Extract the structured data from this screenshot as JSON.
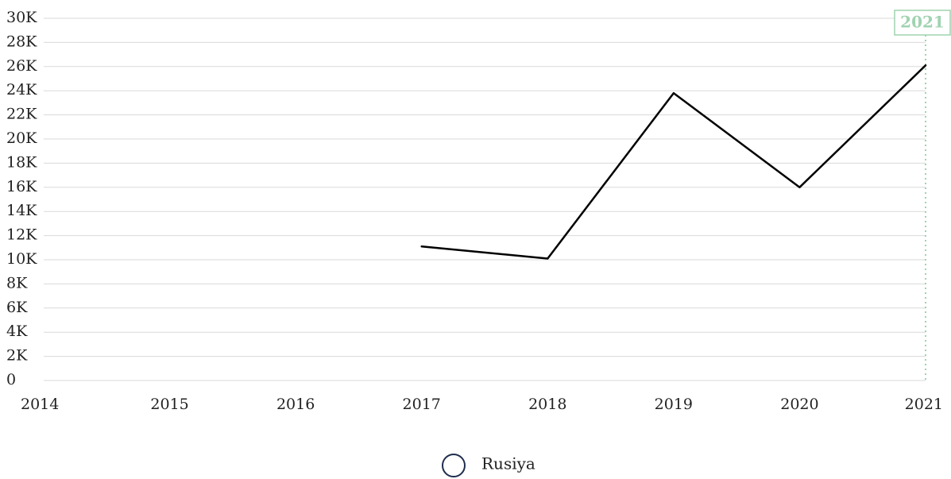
{
  "chart_data": {
    "type": "line",
    "x": [
      2014,
      2015,
      2016,
      2017,
      2018,
      2019,
      2020,
      2021
    ],
    "x_tick_labels": [
      "2014",
      "2015",
      "2016",
      "2017",
      "2018",
      "2019",
      "2020",
      "2021"
    ],
    "series": [
      {
        "name": "Rusiya",
        "color": "#000000",
        "points": [
          {
            "x": 2017,
            "y": 11100
          },
          {
            "x": 2018,
            "y": 10100
          },
          {
            "x": 2019,
            "y": 23800
          },
          {
            "x": 2020,
            "y": 16000
          },
          {
            "x": 2021,
            "y": 26100
          }
        ]
      }
    ],
    "ylim": [
      0,
      30000
    ],
    "xlim": [
      2014,
      2021
    ],
    "y_ticks": [
      0,
      2000,
      4000,
      6000,
      8000,
      10000,
      12000,
      14000,
      16000,
      18000,
      20000,
      22000,
      24000,
      26000,
      28000,
      30000
    ],
    "y_tick_labels": [
      "0",
      "2K",
      "4K",
      "6K",
      "8K",
      "10K",
      "12K",
      "14K",
      "16K",
      "18K",
      "20K",
      "22K",
      "24K",
      "26K",
      "28K",
      "30K"
    ],
    "grid": true,
    "legend_position": "bottom-center",
    "highlight": {
      "x": 2021,
      "label": "2021",
      "color": "#9fd3b0"
    },
    "legend_marker_color": "#1f2d4d"
  }
}
